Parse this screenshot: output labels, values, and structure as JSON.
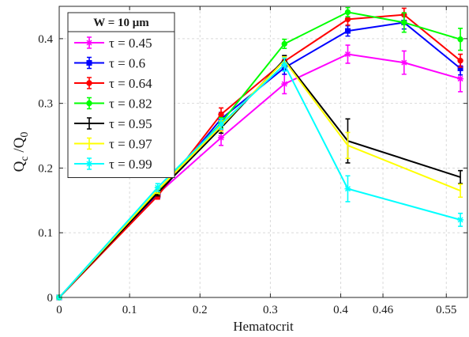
{
  "chart_data": {
    "type": "line",
    "title": "",
    "xlabel": "Hematocrit",
    "ylabel": "Q_c / Q_0",
    "xlim": [
      0,
      0.58
    ],
    "ylim": [
      0,
      0.45
    ],
    "xticks": [
      "0",
      "0.1",
      "0.2",
      "0.3",
      "0.4",
      "0.46",
      "0.55"
    ],
    "xtick_values": [
      0,
      0.1,
      0.2,
      0.3,
      0.4,
      0.46,
      0.55
    ],
    "yticks": [
      "0",
      "0.1",
      "0.2",
      "0.3",
      "0.4"
    ],
    "ytick_values": [
      0,
      0.1,
      0.2,
      0.3,
      0.4
    ],
    "grid": true,
    "grid_style": "dashed",
    "legend": {
      "title": "W = 10 μm",
      "placement": "top-left"
    },
    "series": [
      {
        "name": "τ = 0.45",
        "color": "#ff00ff",
        "marker": "star",
        "points": [
          {
            "x": 0,
            "y": 0,
            "err": 0.002
          },
          {
            "x": 0.14,
            "y": 0.16,
            "err": 0.006
          },
          {
            "x": 0.23,
            "y": 0.247,
            "err": 0.012
          },
          {
            "x": 0.32,
            "y": 0.33,
            "err": 0.015
          },
          {
            "x": 0.41,
            "y": 0.376,
            "err": 0.014
          },
          {
            "x": 0.49,
            "y": 0.363,
            "err": 0.018
          },
          {
            "x": 0.57,
            "y": 0.338,
            "err": 0.02
          }
        ]
      },
      {
        "name": "τ = 0.6",
        "color": "#0000ff",
        "marker": "square",
        "points": [
          {
            "x": 0,
            "y": 0,
            "err": 0.002
          },
          {
            "x": 0.14,
            "y": 0.158,
            "err": 0.005
          },
          {
            "x": 0.23,
            "y": 0.276,
            "err": 0.01
          },
          {
            "x": 0.32,
            "y": 0.355,
            "err": 0.01
          },
          {
            "x": 0.41,
            "y": 0.412,
            "err": 0.008
          },
          {
            "x": 0.49,
            "y": 0.425,
            "err": 0.01
          },
          {
            "x": 0.57,
            "y": 0.354,
            "err": 0.01
          }
        ]
      },
      {
        "name": "τ = 0.64",
        "color": "#ff0000",
        "marker": "circle",
        "points": [
          {
            "x": 0,
            "y": 0,
            "err": 0.002
          },
          {
            "x": 0.14,
            "y": 0.157,
            "err": 0.005
          },
          {
            "x": 0.23,
            "y": 0.283,
            "err": 0.01
          },
          {
            "x": 0.32,
            "y": 0.365,
            "err": 0.008
          },
          {
            "x": 0.41,
            "y": 0.43,
            "err": 0.009
          },
          {
            "x": 0.49,
            "y": 0.437,
            "err": 0.01
          },
          {
            "x": 0.57,
            "y": 0.366,
            "err": 0.01
          }
        ]
      },
      {
        "name": "τ = 0.82",
        "color": "#00ff00",
        "marker": "circle",
        "points": [
          {
            "x": 0,
            "y": 0,
            "err": 0.002
          },
          {
            "x": 0.14,
            "y": 0.165,
            "err": 0.005
          },
          {
            "x": 0.23,
            "y": 0.27,
            "err": 0.008
          },
          {
            "x": 0.32,
            "y": 0.392,
            "err": 0.007
          },
          {
            "x": 0.41,
            "y": 0.441,
            "err": 0.007
          },
          {
            "x": 0.49,
            "y": 0.425,
            "err": 0.015
          },
          {
            "x": 0.57,
            "y": 0.399,
            "err": 0.017
          }
        ]
      },
      {
        "name": "τ = 0.95",
        "color": "#000000",
        "marker": "none",
        "points": [
          {
            "x": 0,
            "y": 0,
            "err": 0.002
          },
          {
            "x": 0.14,
            "y": 0.162,
            "err": 0.005
          },
          {
            "x": 0.23,
            "y": 0.262,
            "err": 0.008
          },
          {
            "x": 0.32,
            "y": 0.368,
            "err": 0.006
          },
          {
            "x": 0.41,
            "y": 0.242,
            "err": 0.034
          },
          {
            "x": 0.57,
            "y": 0.186,
            "err": 0.01
          }
        ]
      },
      {
        "name": "τ = 0.97",
        "color": "#ffff00",
        "marker": "none",
        "points": [
          {
            "x": 0,
            "y": 0,
            "err": 0.002
          },
          {
            "x": 0.14,
            "y": 0.166,
            "err": 0.005
          },
          {
            "x": 0.23,
            "y": 0.265,
            "err": 0.008
          },
          {
            "x": 0.32,
            "y": 0.366,
            "err": 0.006
          },
          {
            "x": 0.41,
            "y": 0.235,
            "err": 0.02
          },
          {
            "x": 0.57,
            "y": 0.165,
            "err": 0.01
          }
        ]
      },
      {
        "name": "τ = 0.99",
        "color": "#00ffff",
        "marker": "star",
        "points": [
          {
            "x": 0,
            "y": 0,
            "err": 0.002
          },
          {
            "x": 0.14,
            "y": 0.17,
            "err": 0.006
          },
          {
            "x": 0.23,
            "y": 0.268,
            "err": 0.008
          },
          {
            "x": 0.32,
            "y": 0.36,
            "err": 0.01
          },
          {
            "x": 0.41,
            "y": 0.168,
            "err": 0.02
          },
          {
            "x": 0.57,
            "y": 0.12,
            "err": 0.01
          }
        ]
      }
    ]
  }
}
